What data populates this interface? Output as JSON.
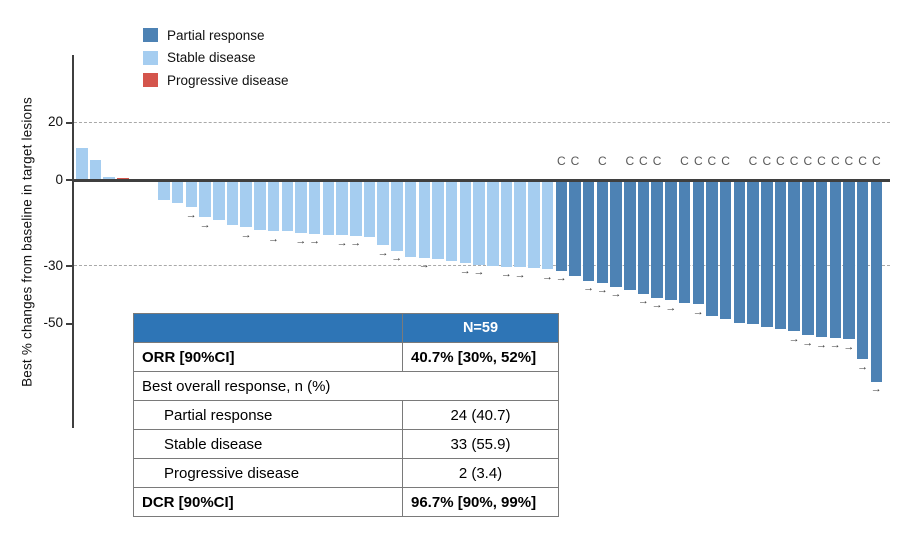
{
  "colors": {
    "partial_response": "#4d82b4",
    "stable_disease": "#a5cdf0",
    "progressive_disease": "#d4554c",
    "table_header": "#2e75b6",
    "axis": "#3f3f3f",
    "gridline": "#a9a9a9",
    "annotation": "#595959"
  },
  "legend": {
    "items": [
      {
        "label": "Partial response",
        "color_key": "partial_response"
      },
      {
        "label": "Stable disease",
        "color_key": "stable_disease"
      },
      {
        "label": "Progressive disease",
        "color_key": "progressive_disease"
      }
    ]
  },
  "annotations": {
    "confirmed_symbol": "C",
    "ongoing_symbol": "→"
  },
  "chart_data": {
    "type": "bar",
    "subtype": "waterfall",
    "title": "",
    "xlabel": "",
    "ylabel": "Best % changes from baseline in target lesions",
    "n": 59,
    "ylim": [
      -80,
      45
    ],
    "yticks": [
      {
        "label": "20",
        "value": 20,
        "gridline": true
      },
      {
        "label": "0",
        "value": 0,
        "gridline": false
      },
      {
        "label": "-30",
        "value": -30,
        "gridline": true
      },
      {
        "label": "-50",
        "value": -50,
        "gridline": false
      }
    ],
    "reference_lines": [
      20,
      -30
    ],
    "legend_position": "top-left",
    "bars": [
      {
        "value": 11,
        "response": "SD"
      },
      {
        "value": 7,
        "response": "SD"
      },
      {
        "value": 1.2,
        "response": "SD"
      },
      {
        "value": 0.8,
        "response": "PD"
      },
      {
        "value": 0,
        "response": "SD"
      },
      {
        "value": -0.8,
        "response": "PD"
      },
      {
        "value": -7,
        "response": "SD"
      },
      {
        "value": -8,
        "response": "SD"
      },
      {
        "value": -9.5,
        "response": "SD",
        "ongoing": true
      },
      {
        "value": -13,
        "response": "SD",
        "ongoing": true
      },
      {
        "value": -14,
        "response": "SD"
      },
      {
        "value": -15.8,
        "response": "SD"
      },
      {
        "value": -16.5,
        "response": "SD",
        "ongoing": true
      },
      {
        "value": -17.5,
        "response": "SD"
      },
      {
        "value": -17.8,
        "response": "SD",
        "ongoing": true
      },
      {
        "value": -17.8,
        "response": "SD"
      },
      {
        "value": -18.5,
        "response": "SD",
        "ongoing": true
      },
      {
        "value": -18.7,
        "response": "SD",
        "ongoing": true
      },
      {
        "value": -19,
        "response": "SD"
      },
      {
        "value": -19.2,
        "response": "SD",
        "ongoing": true
      },
      {
        "value": -19.4,
        "response": "SD",
        "ongoing": true
      },
      {
        "value": -20,
        "response": "SD"
      },
      {
        "value": -22.8,
        "response": "SD",
        "ongoing": true
      },
      {
        "value": -24.6,
        "response": "SD",
        "ongoing": true
      },
      {
        "value": -26.7,
        "response": "SD"
      },
      {
        "value": -27,
        "response": "SD",
        "ongoing": true
      },
      {
        "value": -27.4,
        "response": "SD"
      },
      {
        "value": -28.3,
        "response": "SD"
      },
      {
        "value": -29,
        "response": "SD",
        "ongoing": true
      },
      {
        "value": -29.5,
        "response": "SD",
        "ongoing": true
      },
      {
        "value": -29.8,
        "response": "SD"
      },
      {
        "value": -30.2,
        "response": "SD",
        "ongoing": true
      },
      {
        "value": -30.4,
        "response": "SD",
        "ongoing": true
      },
      {
        "value": -30.6,
        "response": "SD"
      },
      {
        "value": -31,
        "response": "SD",
        "ongoing": true
      },
      {
        "value": -31.6,
        "response": "PR",
        "ongoing": true,
        "confirmed": true
      },
      {
        "value": -33.3,
        "response": "PR",
        "confirmed": true
      },
      {
        "value": -35,
        "response": "PR",
        "ongoing": true
      },
      {
        "value": -35.8,
        "response": "PR",
        "ongoing": true,
        "confirmed": true
      },
      {
        "value": -37.2,
        "response": "PR",
        "ongoing": true
      },
      {
        "value": -38.2,
        "response": "PR",
        "confirmed": true
      },
      {
        "value": -39.6,
        "response": "PR",
        "ongoing": true,
        "confirmed": true
      },
      {
        "value": -41,
        "response": "PR",
        "ongoing": true,
        "confirmed": true
      },
      {
        "value": -41.8,
        "response": "PR",
        "ongoing": true
      },
      {
        "value": -42.8,
        "response": "PR",
        "confirmed": true
      },
      {
        "value": -43.2,
        "response": "PR",
        "ongoing": true,
        "confirmed": true
      },
      {
        "value": -47.4,
        "response": "PR",
        "confirmed": true
      },
      {
        "value": -48.4,
        "response": "PR",
        "confirmed": true
      },
      {
        "value": -49.8,
        "response": "PR"
      },
      {
        "value": -50.2,
        "response": "PR",
        "confirmed": true
      },
      {
        "value": -51.2,
        "response": "PR",
        "confirmed": true
      },
      {
        "value": -51.9,
        "response": "PR",
        "confirmed": true
      },
      {
        "value": -52.6,
        "response": "PR",
        "ongoing": true,
        "confirmed": true
      },
      {
        "value": -54,
        "response": "PR",
        "ongoing": true,
        "confirmed": true
      },
      {
        "value": -54.7,
        "response": "PR",
        "ongoing": true,
        "confirmed": true
      },
      {
        "value": -55,
        "response": "PR",
        "ongoing": true,
        "confirmed": true
      },
      {
        "value": -55.4,
        "response": "PR",
        "ongoing": true,
        "confirmed": true
      },
      {
        "value": -62.5,
        "response": "PR",
        "ongoing": true,
        "confirmed": true
      },
      {
        "value": -70.2,
        "response": "PR",
        "ongoing": true,
        "confirmed": true
      }
    ]
  },
  "table": {
    "header": [
      "",
      "N=59"
    ],
    "rows": [
      {
        "label": "ORR [90%CI]",
        "value": "40.7% [30%, 52%]"
      },
      {
        "label": "Best overall response, n (%)",
        "value": ""
      },
      {
        "label": "Partial response",
        "value": "24 (40.7)"
      },
      {
        "label": "Stable disease",
        "value": "33 (55.9)"
      },
      {
        "label": "Progressive disease",
        "value": "2 (3.4)"
      },
      {
        "label": "DCR [90%CI]",
        "value": "96.7% [90%, 99%]"
      }
    ]
  }
}
